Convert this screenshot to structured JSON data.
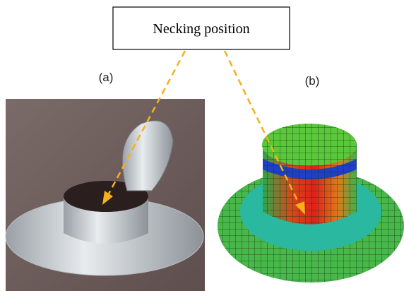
{
  "callout": {
    "label": "Necking position"
  },
  "panels": [
    {
      "label": "(a)"
    },
    {
      "label": "(b)"
    }
  ]
}
